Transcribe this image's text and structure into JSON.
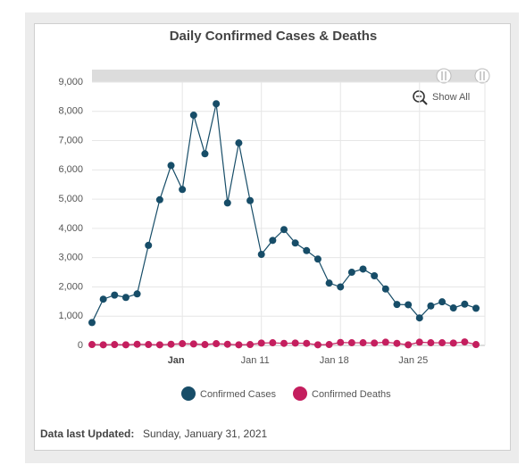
{
  "chart_data": {
    "type": "line",
    "title": "Daily Confirmed Cases & Deaths",
    "categories": [
      null,
      null,
      null,
      null,
      null,
      null,
      null,
      null,
      "Jan",
      null,
      null,
      null,
      null,
      null,
      null,
      "Jan 11",
      null,
      null,
      null,
      null,
      null,
      null,
      "Jan 18",
      null,
      null,
      null,
      null,
      null,
      null,
      "Jan 25",
      null,
      null,
      null,
      null,
      null
    ],
    "series": [
      {
        "name": "Confirmed Cases",
        "color": "#174d68",
        "values": [
          780,
          1580,
          1720,
          1640,
          1760,
          3420,
          4980,
          6150,
          5330,
          7870,
          6550,
          8260,
          4870,
          6920,
          4950,
          3110,
          3590,
          3960,
          3500,
          3240,
          2950,
          2130,
          2000,
          2500,
          2610,
          2380,
          1930,
          1400,
          1390,
          940,
          1350,
          1490,
          1280,
          1410,
          1270
        ]
      },
      {
        "name": "Confirmed Deaths",
        "color": "#c41e5e",
        "values": [
          30,
          20,
          30,
          20,
          40,
          30,
          20,
          40,
          60,
          50,
          30,
          60,
          40,
          20,
          30,
          80,
          90,
          70,
          80,
          70,
          20,
          30,
          100,
          90,
          90,
          80,
          110,
          70,
          20,
          110,
          90,
          90,
          80,
          120,
          30
        ]
      }
    ],
    "ylim": [
      0,
      9000
    ],
    "yticks": [
      0,
      {
        "value": 1000,
        "label": "1,000"
      },
      {
        "value": 2000,
        "label": "2,000"
      },
      {
        "value": 3000,
        "label": "3,000"
      },
      {
        "value": 4000,
        "label": "4,000"
      },
      {
        "value": 5000,
        "label": "5,000"
      },
      {
        "value": 6000,
        "label": "6,000"
      },
      {
        "value": 7000,
        "label": "7,000"
      },
      {
        "value": 8000,
        "label": "8,000"
      },
      {
        "value": 9000,
        "label": "9,000"
      }
    ],
    "grid": true,
    "legend": "bottom",
    "show_all": "Show All",
    "footnote_label": "Data last Updated:",
    "footnote": "Sunday, January 31, 2021"
  }
}
